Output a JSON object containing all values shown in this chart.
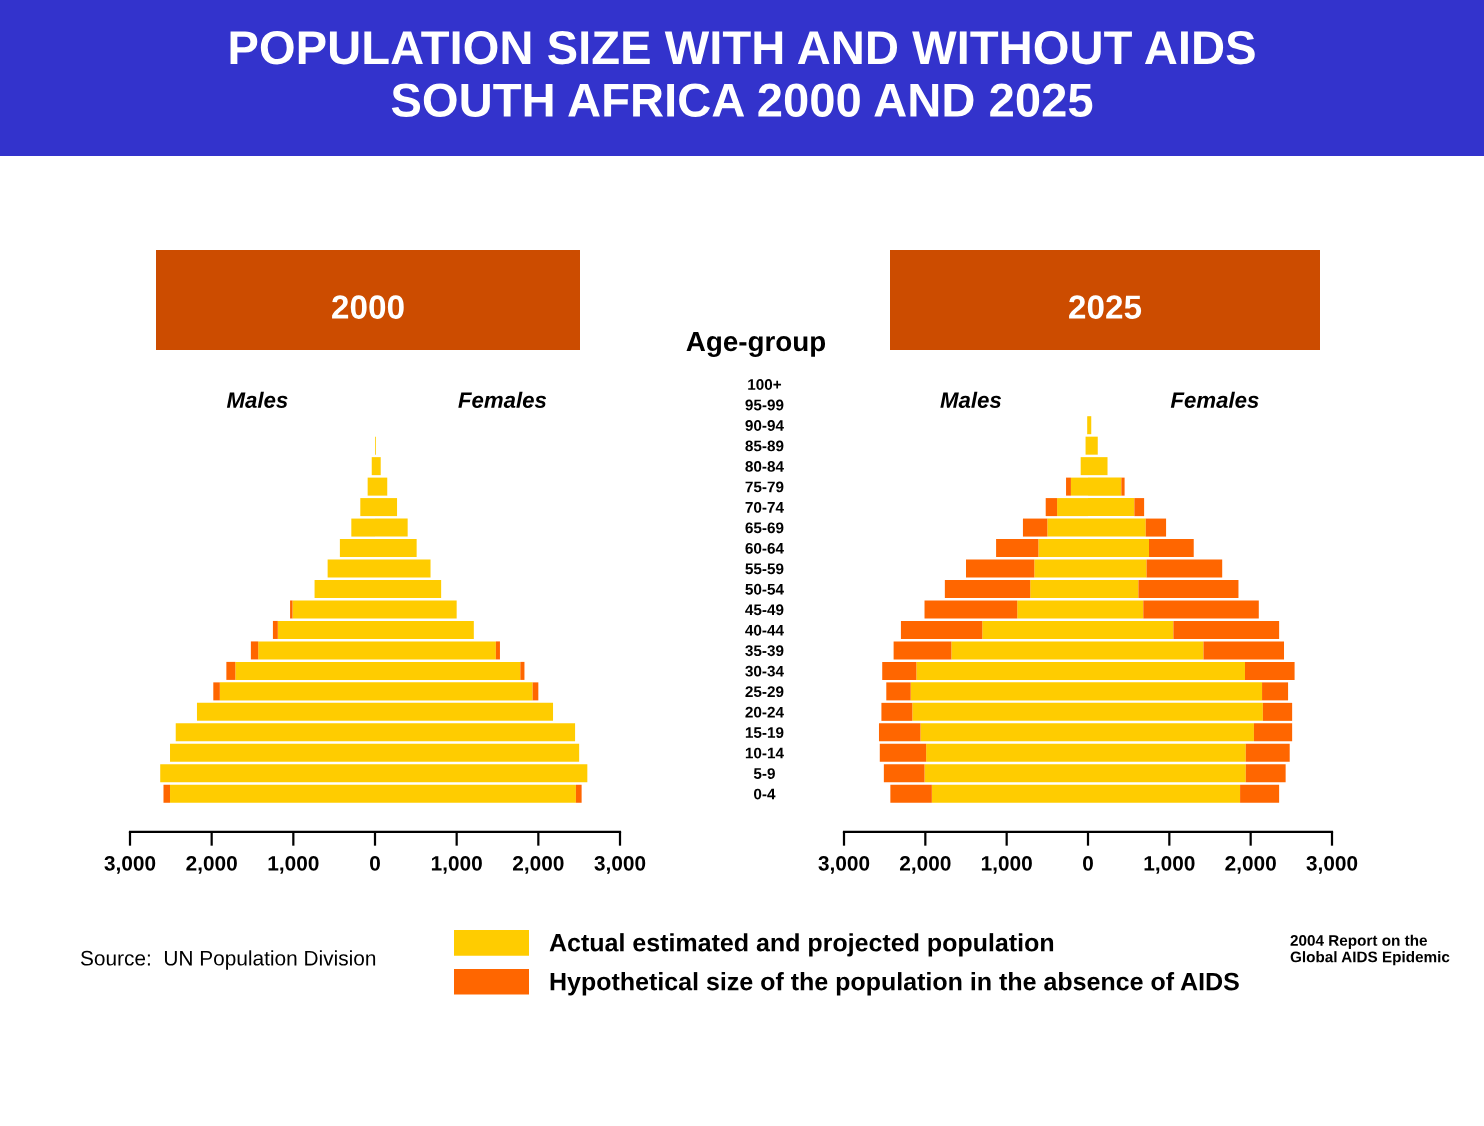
{
  "chart_data": [
    {
      "type": "other",
      "title": "POPULATION SIZE WITH AND WITHOUT AIDS\nSOUTH AFRICA 2000 AND 2025",
      "annotations": [
        "Source:  UN Population Division",
        "2004 Report on the\nGlobal AIDS Epidemic"
      ]
    },
    {
      "type": "bar",
      "orientation": "horizontal",
      "stacked": true,
      "title": "2000",
      "ylabel": "Age-group",
      "annotations": [
        "Males",
        "Females"
      ],
      "legend": "bottom",
      "categories": [
        "100+",
        "95-99",
        "90-94",
        "85-89",
        "80-84",
        "75-79",
        "70-74",
        "65-69",
        "60-64",
        "55-59",
        "50-54",
        "45-49",
        "40-44",
        "35-39",
        "30-34",
        "25-29",
        "20-24",
        "15-19",
        "10-14",
        "5-9",
        "0-4"
      ],
      "xlim": [
        -3000,
        3000
      ],
      "xticks": [
        {
          "value": -3000,
          "label": "3,000"
        },
        {
          "value": -2000,
          "label": "2,000"
        },
        {
          "value": -1000,
          "label": "1,000"
        },
        0,
        {
          "value": 1000,
          "label": "1,000"
        },
        {
          "value": 2000,
          "label": "2,000"
        },
        {
          "value": 3000,
          "label": "3,000"
        }
      ],
      "series": [
        {
          "name": "Actual estimated and projected population",
          "color": "#ffcc00",
          "values": [
            null,
            null,
            null,
            null,
            -40,
            -90,
            -180,
            -290,
            -430,
            -580,
            -740,
            -1010,
            -1190,
            -1430,
            -1710,
            -1900,
            -2180,
            -2440,
            -2510,
            -2630,
            -2510
          ]
        },
        {
          "name": "Hypothetical size of the population in the absence of AIDS",
          "color": "#ff6600",
          "values": [
            null,
            null,
            null,
            null,
            null,
            null,
            null,
            null,
            null,
            null,
            null,
            -30,
            -60,
            -90,
            -110,
            -80,
            null,
            null,
            null,
            null,
            -80
          ]
        },
        {
          "color": "#ffcc00",
          "values": [
            null,
            null,
            null,
            10,
            70,
            150,
            270,
            400,
            510,
            680,
            810,
            1000,
            1210,
            1480,
            1780,
            1930,
            2180,
            2450,
            2500,
            2600,
            2460
          ]
        },
        {
          "color": "#ff6600",
          "values": [
            null,
            null,
            null,
            null,
            null,
            null,
            null,
            null,
            null,
            null,
            null,
            null,
            null,
            50,
            50,
            70,
            null,
            null,
            null,
            null,
            70
          ]
        }
      ]
    },
    {
      "type": "bar",
      "orientation": "horizontal",
      "stacked": true,
      "title": "2025",
      "annotations": [
        "Males",
        "Females"
      ],
      "tick_labels": "x",
      "categories": [
        null,
        null,
        null,
        null,
        null,
        null,
        null,
        null,
        null,
        null,
        null,
        null,
        null,
        null,
        null,
        null,
        null,
        null,
        null,
        null,
        null
      ],
      "xlim": [
        -3000,
        3000
      ],
      "xticks": [
        {
          "value": -3000,
          "label": "3,000"
        },
        {
          "value": -2000,
          "label": "2,000"
        },
        {
          "value": -1000,
          "label": "1,000"
        },
        0,
        {
          "value": 1000,
          "label": "1,000"
        },
        {
          "value": 2000,
          "label": "2,000"
        },
        {
          "value": 3000,
          "label": "3,000"
        }
      ],
      "series": [
        {
          "color": "#ffcc00",
          "values": [
            null,
            null,
            -10,
            -30,
            -90,
            -210,
            -380,
            -500,
            -610,
            -660,
            -710,
            -870,
            -1300,
            -1680,
            -2110,
            -2180,
            -2160,
            -2060,
            -1990,
            -2010,
            -1920
          ]
        },
        {
          "color": "#ff6600",
          "values": [
            null,
            null,
            null,
            null,
            null,
            -60,
            -140,
            -300,
            -520,
            -840,
            -1050,
            -1140,
            -1000,
            -710,
            -420,
            -300,
            -380,
            -510,
            -570,
            -500,
            -510
          ]
        },
        {
          "color": "#ffcc00",
          "values": [
            null,
            null,
            40,
            120,
            240,
            410,
            570,
            710,
            750,
            720,
            620,
            680,
            1050,
            1420,
            1930,
            2140,
            2150,
            2040,
            1940,
            1940,
            1870
          ]
        },
        {
          "color": "#ff6600",
          "values": [
            null,
            null,
            null,
            null,
            null,
            40,
            120,
            250,
            550,
            930,
            1230,
            1420,
            1300,
            990,
            610,
            320,
            360,
            470,
            540,
            490,
            480
          ]
        }
      ]
    }
  ]
}
